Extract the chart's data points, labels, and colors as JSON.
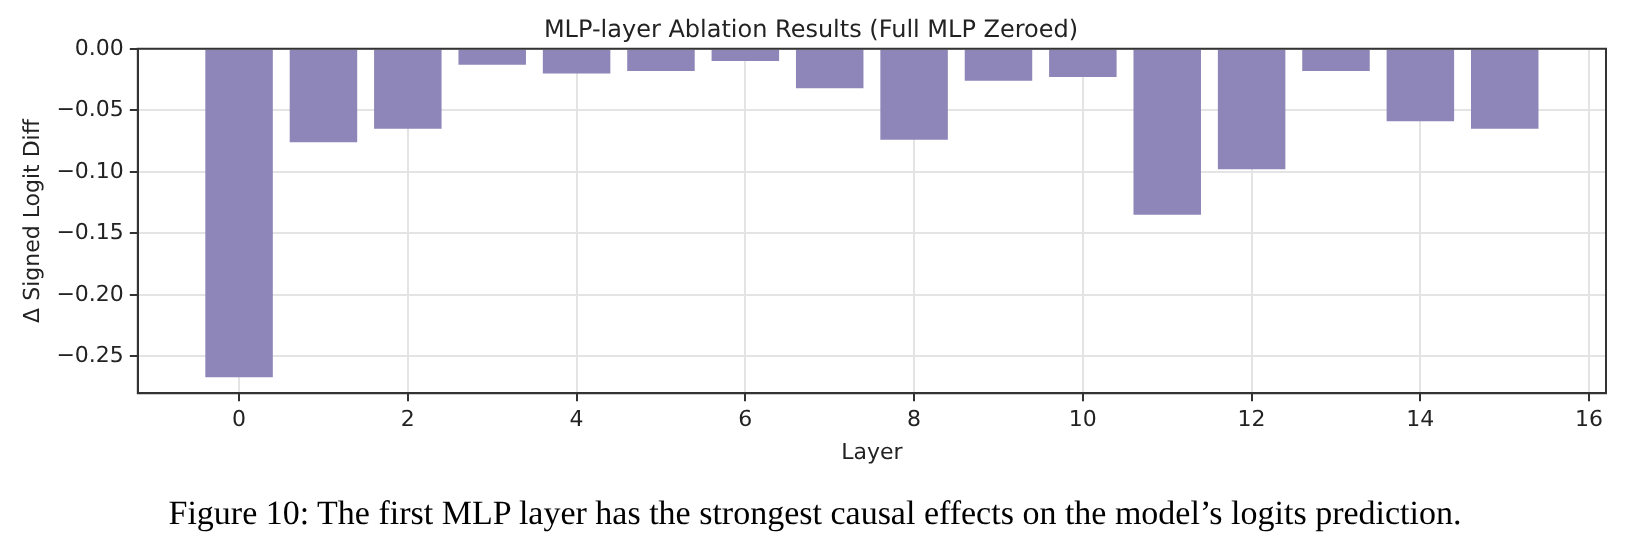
{
  "chart_data": {
    "type": "bar",
    "title": "MLP-layer Ablation Results (Full MLP Zeroed)",
    "xlabel": "Layer",
    "ylabel": "Δ Signed Logit Diff",
    "x": [
      0,
      1,
      2,
      3,
      4,
      5,
      6,
      7,
      8,
      9,
      10,
      11,
      12,
      13,
      14,
      15
    ],
    "values": [
      -0.267,
      -0.076,
      -0.065,
      -0.013,
      -0.02,
      -0.018,
      -0.01,
      -0.032,
      -0.074,
      -0.026,
      -0.023,
      -0.135,
      -0.098,
      -0.018,
      -0.059,
      -0.065
    ],
    "color": "#8e86b8",
    "xlim": [
      -1.2,
      16.2
    ],
    "xticks": [
      0,
      2,
      4,
      6,
      8,
      10,
      12,
      14,
      16
    ],
    "ylim": [
      -0.28,
      0
    ],
    "yticks": [
      {
        "value": 0,
        "label": "0.00"
      },
      {
        "value": -0.05,
        "label": "−0.05"
      },
      {
        "value": -0.1,
        "label": "−0.10"
      },
      {
        "value": -0.15,
        "label": "−0.15"
      },
      {
        "value": -0.2,
        "label": "−0.20"
      },
      {
        "value": -0.25,
        "label": "−0.25"
      }
    ],
    "grid": true,
    "legend": false,
    "annotations": [
      "Figure 10: The first MLP layer has the strongest causal effects on the model’s logits prediction."
    ]
  }
}
